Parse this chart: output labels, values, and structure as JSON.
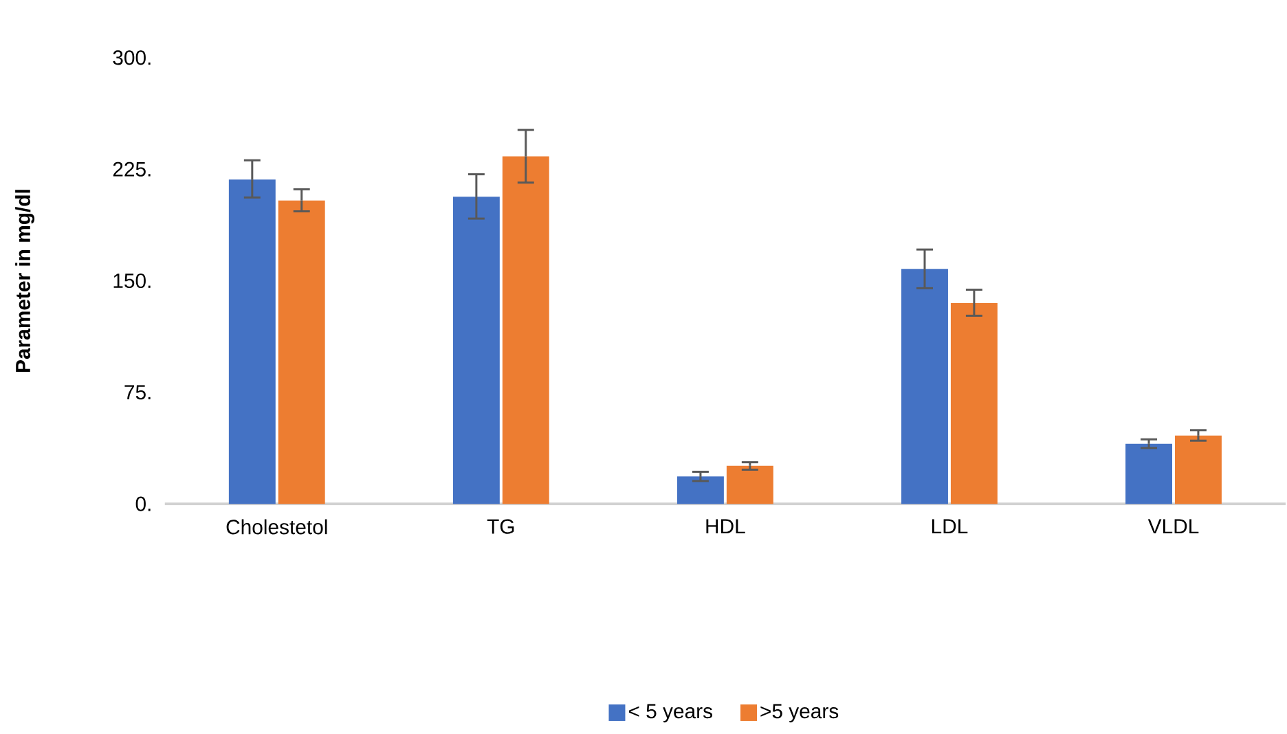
{
  "chart_data": {
    "type": "bar",
    "ylabel": "Parameter in mg/dl",
    "categories": [
      "Cholestetol",
      "TG",
      "HDL",
      "LDL",
      "VLDL"
    ],
    "series": [
      {
        "name": "< 5 years",
        "color": "#4472c4",
        "values": [
          218,
          206.5,
          18.5,
          158,
          40.4
        ],
        "errors": [
          [
            206,
            231
          ],
          [
            191.8,
            221.6
          ],
          [
            15.4,
            21.6
          ],
          [
            145,
            171
          ],
          [
            37.6,
            43.4
          ]
        ]
      },
      {
        "name": ">5 years",
        "color": "#ed7d31",
        "values": [
          204,
          233.6,
          25.6,
          135,
          45.9
        ],
        "errors": [
          [
            196.7,
            211.5
          ],
          [
            216,
            251.4
          ],
          [
            23,
            28
          ],
          [
            126.5,
            144
          ],
          [
            42.5,
            49.6
          ]
        ]
      }
    ],
    "ylim": [
      0,
      300
    ],
    "yticks": [
      {
        "value": 0,
        "label": "0."
      },
      {
        "value": 75,
        "label": "75."
      },
      {
        "value": 150,
        "label": "150."
      },
      {
        "value": 225,
        "label": "225."
      },
      {
        "value": 300,
        "label": "300."
      }
    ],
    "legend": "bottom"
  }
}
